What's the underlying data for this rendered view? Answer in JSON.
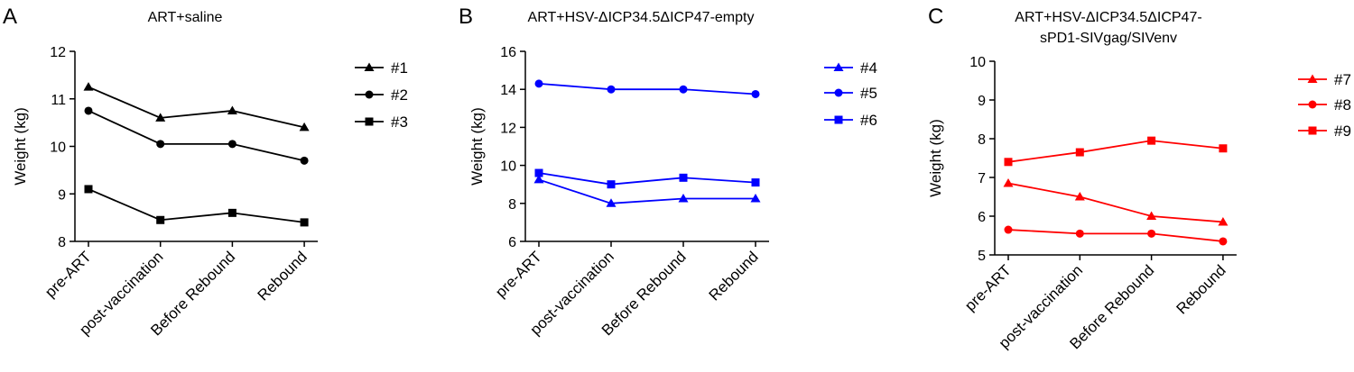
{
  "chart_data": [
    {
      "type": "line",
      "panel_label": "A",
      "title": "ART+saline",
      "y_label": "Weight (kg)",
      "categories": [
        "pre-ART",
        "post-vaccination",
        "Before Rebound",
        "Rebound"
      ],
      "ylim": [
        8,
        12
      ],
      "yticks": [
        8,
        9,
        10,
        11,
        12
      ],
      "grid": false,
      "legend": "right",
      "series": [
        {
          "name": "#1",
          "color": "#000000",
          "marker": "triangle",
          "values": [
            11.25,
            10.6,
            10.75,
            10.4
          ]
        },
        {
          "name": "#2",
          "color": "#000000",
          "marker": "circle",
          "values": [
            10.75,
            10.05,
            10.05,
            9.7
          ]
        },
        {
          "name": "#3",
          "color": "#000000",
          "marker": "square",
          "values": [
            9.1,
            8.45,
            8.6,
            8.4
          ]
        }
      ]
    },
    {
      "type": "line",
      "panel_label": "B",
      "title": "ART+HSV-ΔICP34.5ΔICP47-empty",
      "y_label": "Weight (kg)",
      "categories": [
        "pre-ART",
        "post-vaccination",
        "Before Rebound",
        "Rebound"
      ],
      "ylim": [
        6,
        16
      ],
      "yticks": [
        6,
        8,
        10,
        12,
        14,
        16
      ],
      "grid": false,
      "legend": "right",
      "series": [
        {
          "name": "#4",
          "color": "#0000ff",
          "marker": "triangle",
          "values": [
            9.25,
            8.0,
            8.25,
            8.25
          ]
        },
        {
          "name": "#5",
          "color": "#0000ff",
          "marker": "circle",
          "values": [
            14.3,
            14.0,
            14.0,
            13.75
          ]
        },
        {
          "name": "#6",
          "color": "#0000ff",
          "marker": "square",
          "values": [
            9.6,
            9.0,
            9.35,
            9.1
          ]
        }
      ]
    },
    {
      "type": "line",
      "panel_label": "C",
      "title": [
        "ART+HSV-ΔICP34.5ΔICP47-",
        "sPD1-SIVgag/SIVenv"
      ],
      "y_label": "Weight (kg)",
      "categories": [
        "pre-ART",
        "post-vaccination",
        "Before Rebound",
        "Rebound"
      ],
      "ylim": [
        5,
        10
      ],
      "yticks": [
        5,
        6,
        7,
        8,
        9,
        10
      ],
      "grid": false,
      "legend": "right",
      "series": [
        {
          "name": "#7",
          "color": "#ff0000",
          "marker": "triangle",
          "values": [
            6.85,
            6.5,
            6.0,
            5.85
          ]
        },
        {
          "name": "#8",
          "color": "#ff0000",
          "marker": "circle",
          "values": [
            5.65,
            5.55,
            5.55,
            5.35
          ]
        },
        {
          "name": "#9",
          "color": "#ff0000",
          "marker": "square",
          "values": [
            7.4,
            7.65,
            7.95,
            7.75
          ]
        }
      ]
    }
  ]
}
